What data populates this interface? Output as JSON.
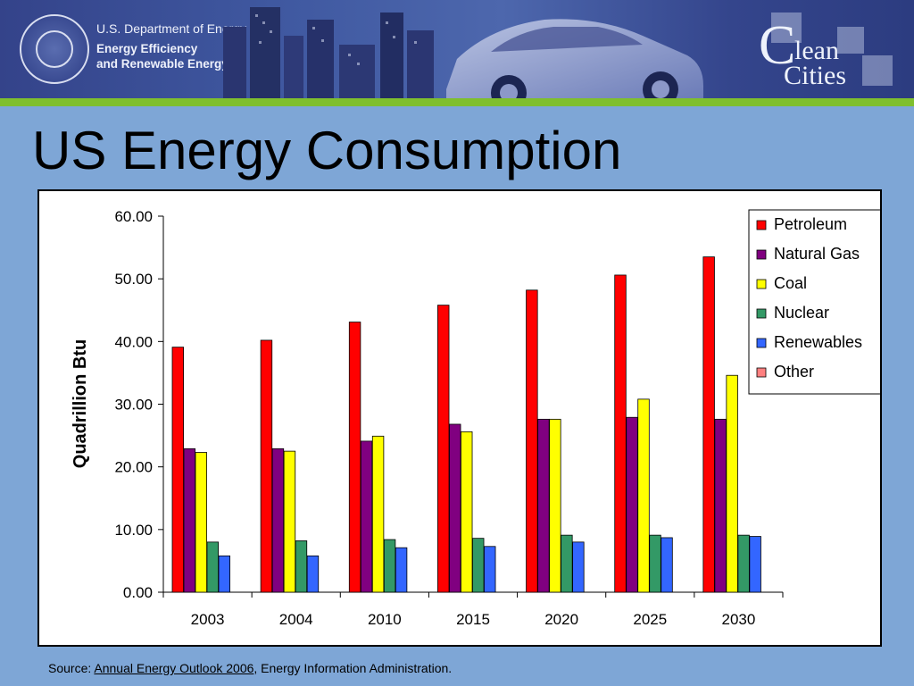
{
  "header": {
    "department": "U.S. Department of Energy",
    "office_line1": "Energy Efficiency",
    "office_line2": "and Renewable Energy",
    "logo": {
      "letter": "C",
      "word1": "lean",
      "word2": "Cities"
    }
  },
  "slide": {
    "title": "US Energy Consumption"
  },
  "source": {
    "prefix": "Source: ",
    "link_text": " Annual Energy Outlook 2006",
    "suffix": ", Energy Information Administration."
  },
  "colors": {
    "banner": "#3f58a0",
    "accent_stripe": "#7fbf2e",
    "slide_background": "#7ea6d6"
  },
  "chart_data": {
    "type": "bar",
    "title": "",
    "xlabel": "",
    "ylabel": "Quadrillion Btu",
    "ylim": [
      0,
      60
    ],
    "yticks": [
      "0.00",
      "10.00",
      "20.00",
      "30.00",
      "40.00",
      "50.00",
      "60.00"
    ],
    "categories": [
      "2003",
      "2004",
      "2010",
      "2015",
      "2020",
      "2025",
      "2030"
    ],
    "legend_position": "top-right",
    "series": [
      {
        "name": "Petroleum",
        "color": "#ff0000",
        "values": [
          39.1,
          40.2,
          43.1,
          45.8,
          48.2,
          50.6,
          53.5
        ]
      },
      {
        "name": "Natural Gas",
        "color": "#800080",
        "values": [
          22.9,
          22.9,
          24.1,
          26.8,
          27.6,
          27.9,
          27.6
        ]
      },
      {
        "name": "Coal",
        "color": "#ffff00",
        "values": [
          22.3,
          22.5,
          24.9,
          25.6,
          27.6,
          30.8,
          34.6
        ]
      },
      {
        "name": "Nuclear",
        "color": "#339966",
        "values": [
          8.0,
          8.2,
          8.4,
          8.6,
          9.1,
          9.1,
          9.1
        ]
      },
      {
        "name": "Renewables",
        "color": "#3366ff",
        "values": [
          5.8,
          5.8,
          7.1,
          7.3,
          8.0,
          8.7,
          8.9
        ]
      },
      {
        "name": "Other",
        "color": "#ff8080",
        "values": [
          0,
          0,
          0,
          0,
          0,
          0,
          0
        ]
      }
    ]
  }
}
